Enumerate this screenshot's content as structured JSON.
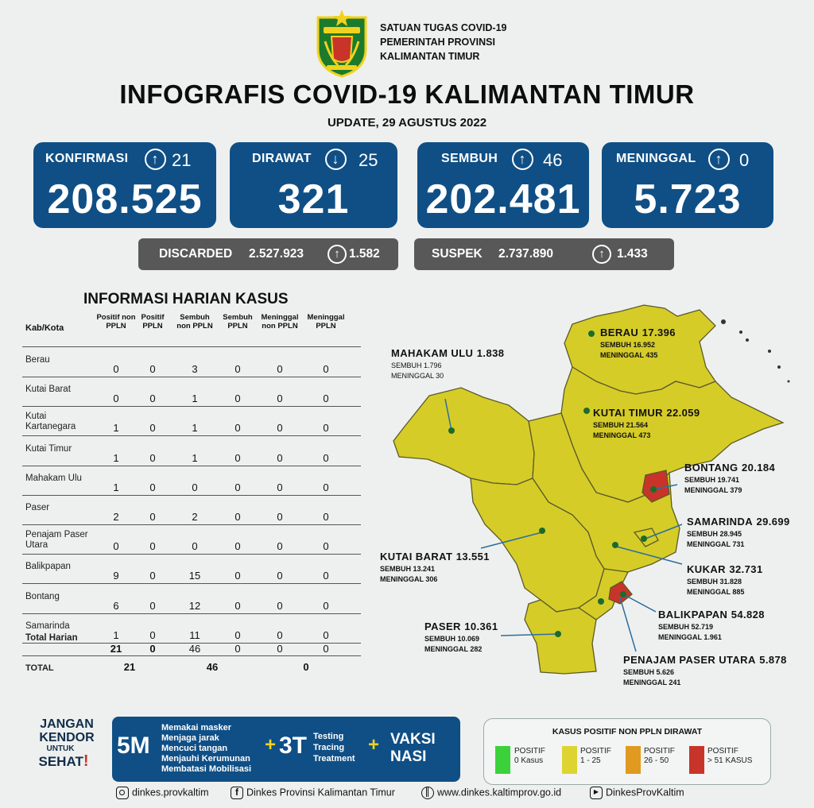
{
  "header": {
    "org_lines": [
      "SATUAN TUGAS COVID-19",
      "PEMERINTAH PROVINSI",
      "KALIMANTAN TIMUR"
    ],
    "title": "INFOGRAFIS COVID-19 KALIMANTAN TIMUR",
    "update": "UPDATE, 29 AGUSTUS 2022"
  },
  "stats": [
    {
      "label": "KONFIRMASI",
      "arrow": "up",
      "change": "21",
      "value": "208.525"
    },
    {
      "label": "DIRAWAT",
      "arrow": "down",
      "change": "25",
      "value": "321"
    },
    {
      "label": "SEMBUH",
      "arrow": "up",
      "change": "46",
      "value": "202.481"
    },
    {
      "label": "MENINGGAL",
      "arrow": "up",
      "change": "0",
      "value": "5.723"
    }
  ],
  "pills": [
    {
      "label": "DISCARDED",
      "value": "2.527.923",
      "arrow": "up",
      "change": "1.582"
    },
    {
      "label": "SUSPEK",
      "value": "2.737.890",
      "arrow": "up",
      "change": "1.433"
    }
  ],
  "table": {
    "title": "INFORMASI HARIAN KASUS",
    "headers": [
      "Kab/Kota",
      "Positif non PPLN",
      "Positif PPLN",
      "Sembuh non PPLN",
      "Sembuh PPLN",
      "Meninggal non PPLN",
      "Meninggal PPLN"
    ],
    "rows": [
      {
        "name": "Berau",
        "v": [
          "0",
          "0",
          "3",
          "0",
          "0",
          "0"
        ]
      },
      {
        "name": "Kutai Barat",
        "v": [
          "0",
          "0",
          "1",
          "0",
          "0",
          "0"
        ]
      },
      {
        "name": "Kutai Kartanegara",
        "v": [
          "1",
          "0",
          "1",
          "0",
          "0",
          "0"
        ]
      },
      {
        "name": "Kutai Timur",
        "v": [
          "1",
          "0",
          "1",
          "0",
          "0",
          "0"
        ]
      },
      {
        "name": "Mahakam Ulu",
        "v": [
          "1",
          "0",
          "0",
          "0",
          "0",
          "0"
        ]
      },
      {
        "name": "Paser",
        "v": [
          "2",
          "0",
          "2",
          "0",
          "0",
          "0"
        ]
      },
      {
        "name": "Penajam Paser Utara",
        "v": [
          "0",
          "0",
          "0",
          "0",
          "0",
          "0"
        ]
      },
      {
        "name": "Balikpapan",
        "v": [
          "9",
          "0",
          "15",
          "0",
          "0",
          "0"
        ]
      },
      {
        "name": "Bontang",
        "v": [
          "6",
          "0",
          "12",
          "0",
          "0",
          "0"
        ]
      },
      {
        "name": "Samarinda",
        "v": [
          "1",
          "0",
          "11",
          "0",
          "0",
          "0"
        ]
      }
    ],
    "total_harian": {
      "label": "Total Harian",
      "v": [
        "21",
        "0",
        "46",
        "0",
        "0",
        "0"
      ]
    },
    "total": {
      "label": "TOTAL",
      "v": [
        "21",
        "46",
        "0"
      ]
    }
  },
  "map": {
    "regions": [
      {
        "name": "BERAU",
        "total": "17.396",
        "sembuh": "SEMBUH 16.952",
        "meninggal": "MENINGGAL 435",
        "color": "#d6cc28"
      },
      {
        "name": "MAHAKAM ULU",
        "total": "1.838",
        "sembuh": "SEMBUH 1.796",
        "meninggal": "MENINGGAL 30",
        "color": "#d6cc28"
      },
      {
        "name": "KUTAI TIMUR",
        "total": "22.059",
        "sembuh": "SEMBUH 21.564",
        "meninggal": "MENINGGAL 473",
        "color": "#d6cc28"
      },
      {
        "name": "BONTANG",
        "total": "20.184",
        "sembuh": "SEMBUH 19.741",
        "meninggal": "MENINGGAL 379",
        "color": "#c8342a"
      },
      {
        "name": "SAMARINDA",
        "total": "29.699",
        "sembuh": "SEMBUH 28.945",
        "meninggal": "MENINGGAL 731",
        "color": "#d6cc28"
      },
      {
        "name": "KUTAI BARAT",
        "total": "13.551",
        "sembuh": "SEMBUH 13.241",
        "meninggal": "MENINGGAL 306",
        "color": "#d6cc28"
      },
      {
        "name": "KUKAR",
        "total": "32.731",
        "sembuh": "SEMBUH 31.828",
        "meninggal": "MENINGGAL 885",
        "color": "#d6cc28"
      },
      {
        "name": "BALIKPAPAN",
        "total": "54.828",
        "sembuh": "SEMBUH 52.719",
        "meninggal": "MENINGGAL 1.961",
        "color": "#c8342a"
      },
      {
        "name": "PASER",
        "total": "10.361",
        "sembuh": "SEMBUH 10.069",
        "meninggal": "MENINGGAL 282",
        "color": "#d6cc28"
      },
      {
        "name": "PENAJAM PASER UTARA",
        "total": "5.878",
        "sembuh": "SEMBUH 5.626",
        "meninggal": "MENINGGAL 241",
        "color": "#d6cc28"
      }
    ]
  },
  "promo": {
    "slogan": [
      "JANGAN",
      "KENDOR",
      "UNTUK",
      "SEHAT",
      "!"
    ],
    "m5": "5M",
    "m5_items": [
      "Memakai masker",
      "Menjaga jarak",
      "Mencuci tangan",
      "Menjauhi Kerumunan",
      "Membatasi Mobilisasi"
    ],
    "plus": "+",
    "t3": "3T",
    "t3_items": [
      "Testing",
      "Tracing",
      "Treatment"
    ],
    "vaksi": [
      "VAKSI",
      "NASI"
    ]
  },
  "legend": {
    "title": "KASUS POSITIF NON PPLN DIRAWAT",
    "items": [
      {
        "label": "POSITIF 0 Kasus",
        "l1": "POSITIF",
        "l2": "0 Kasus",
        "color": "#3bd13b"
      },
      {
        "label": "POSITIF 1 - 25",
        "l1": "POSITIF",
        "l2": "1 - 25",
        "color": "#ddd431"
      },
      {
        "label": "POSITIF 26 - 50",
        "l1": "POSITIF",
        "l2": "26 - 50",
        "color": "#e09a1f"
      },
      {
        "label": "POSITIF > 51 KASUS",
        "l1": "POSITIF",
        "l2": "> 51 KASUS",
        "color": "#c8342a"
      }
    ]
  },
  "footer": {
    "instagram": "dinkes.provkaltim",
    "facebook": "Dinkes Provinsi Kalimantan Timur",
    "website": "www.dinkes.kaltimprov.go.id",
    "youtube": "DinkesProvKaltim"
  }
}
